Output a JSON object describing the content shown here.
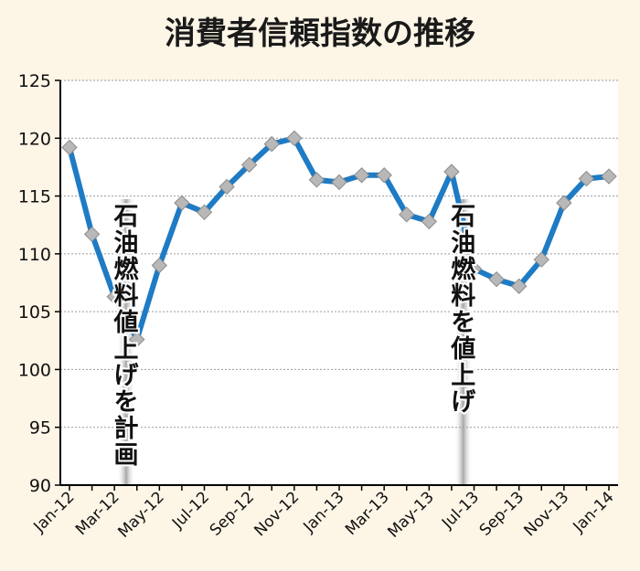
{
  "chart_data": {
    "type": "line",
    "title": "消費者信頼指数の推移",
    "xlabel": "",
    "ylabel": "",
    "ylim": [
      90,
      125
    ],
    "yticks": [
      90,
      95,
      100,
      105,
      110,
      115,
      120,
      125
    ],
    "xtick_labels": [
      "Jan-12",
      "Mar-12",
      "May-12",
      "Jul-12",
      "Sep-12",
      "Nov-12",
      "Jan-13",
      "Mar-13",
      "May-13",
      "Jul-13",
      "Sep-13",
      "Nov-13",
      "Jan-14"
    ],
    "grid": true,
    "line_color": "#1e7bc4",
    "marker_color": "#b8b8b8",
    "band_color": "#a8a8a8",
    "x": [
      "Jan-12",
      "Feb-12",
      "Mar-12",
      "Apr-12",
      "May-12",
      "Jun-12",
      "Jul-12",
      "Aug-12",
      "Sep-12",
      "Oct-12",
      "Nov-12",
      "Dec-12",
      "Jan-13",
      "Feb-13",
      "Mar-13",
      "Apr-13",
      "May-13",
      "Jun-13",
      "Jul-13",
      "Aug-13",
      "Sep-13",
      "Oct-13",
      "Nov-13",
      "Dec-13",
      "Jan-14"
    ],
    "values": [
      119.2,
      111.7,
      106.3,
      102.6,
      109.0,
      114.4,
      113.6,
      115.8,
      117.7,
      119.5,
      120.0,
      116.4,
      116.2,
      116.8,
      116.8,
      113.4,
      112.8,
      117.1,
      108.7,
      107.8,
      107.2,
      109.5,
      114.4,
      116.5,
      116.7
    ],
    "annotations": [
      {
        "text": "石油燃料値上げを計画",
        "x_from": "Mar-12",
        "x_to": "Apr-12"
      },
      {
        "text": "石油燃料を値上げ",
        "x_from": "Jun-13",
        "x_to": "Jul-13"
      }
    ]
  }
}
